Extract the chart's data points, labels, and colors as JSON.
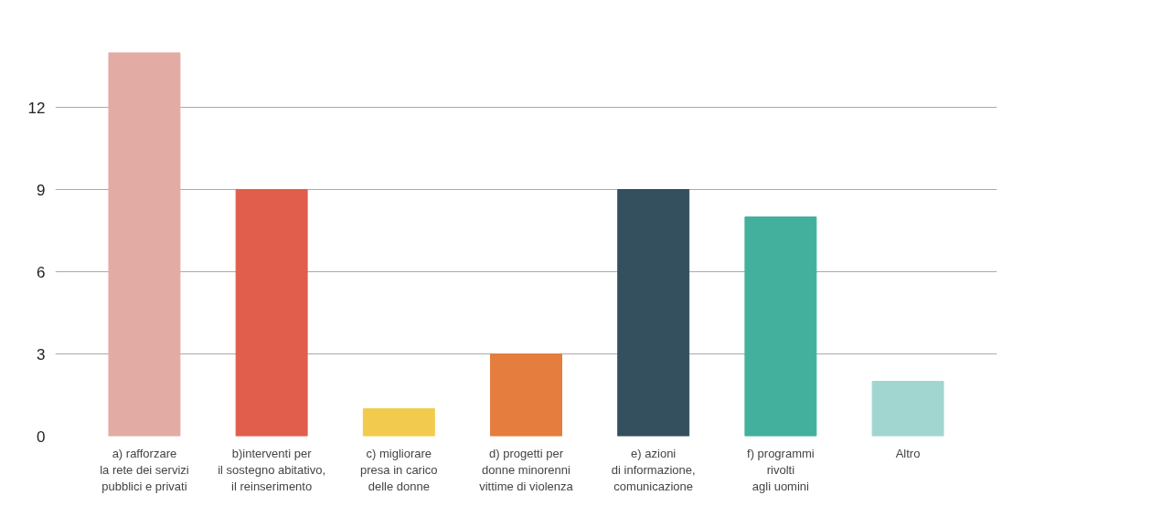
{
  "chart_data": {
    "type": "bar",
    "categories": [
      "a) rafforzare\nla rete dei servizi\npubblici e privati",
      "b)interventi per\nil sostegno abitativo,\nil reinserimento",
      "c) migliorare\npresa in carico\ndelle donne",
      "d) progetti per\ndonne minorenni\nvittime di violenza",
      "e) azioni\ndi informazione,\ncomunicazione",
      "f) programmi\nrivolti\nagli uomini",
      "Altro"
    ],
    "values": [
      14,
      9,
      1,
      3,
      9,
      8,
      2
    ],
    "colors": [
      "#e2aca5",
      "#e05e4b",
      "#f2cb4e",
      "#e47d3e",
      "#34505e",
      "#42b09c",
      "#a1d6d0"
    ],
    "ylim": [
      0,
      14
    ],
    "yticks": [
      0,
      3,
      6,
      9,
      12
    ],
    "grid": "y"
  }
}
